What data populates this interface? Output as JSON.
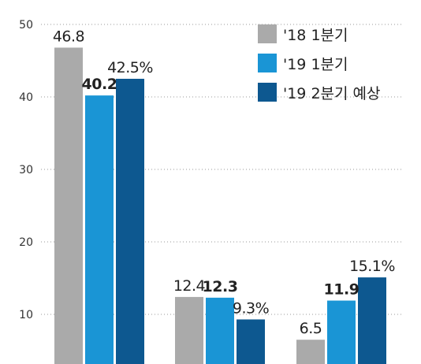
{
  "chart_data": {
    "type": "bar",
    "categories": [
      "",
      "",
      ""
    ],
    "series": [
      {
        "name": "'18 1분기",
        "values": [
          46.8,
          12.4,
          6.5
        ],
        "labels": [
          "46.8",
          "12.4",
          "6.5"
        ],
        "color": "#aaaaaa",
        "bold": false
      },
      {
        "name": "'19 1분기",
        "values": [
          40.2,
          12.3,
          11.9
        ],
        "labels": [
          "40.2",
          "12.3",
          "11.9"
        ],
        "color": "#1a95d5",
        "bold": true
      },
      {
        "name": "'19 2분기 예상",
        "values": [
          42.5,
          9.3,
          15.1
        ],
        "labels": [
          "42.5%",
          "9.3%",
          "15.1%"
        ],
        "color": "#0d5890",
        "bold": false
      }
    ],
    "yticks": [
      10,
      20,
      30,
      40,
      50
    ],
    "ytick_labels": [
      "10",
      "20",
      "30",
      "40",
      "50"
    ],
    "ylim": [
      0,
      50
    ],
    "grid": true,
    "legend_position": "top-right",
    "title": "",
    "xlabel": "",
    "ylabel": ""
  }
}
